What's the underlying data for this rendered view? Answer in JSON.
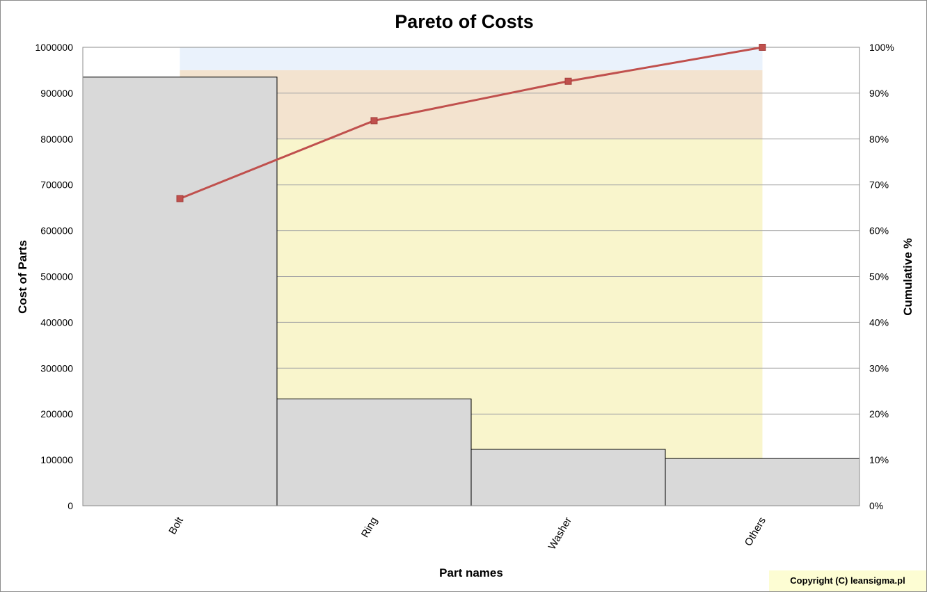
{
  "chart_data": {
    "type": "bar",
    "title": "Pareto of Costs",
    "xlabel": "Part names",
    "ylabel": "Cost of Parts",
    "y2label": "Cumulative %",
    "categories": [
      "Bolt",
      "Ring",
      "Washer",
      "Others"
    ],
    "series": [
      {
        "type": "bar",
        "values": [
          935000,
          233000,
          123000,
          103000
        ]
      },
      {
        "type": "line",
        "values": [
          67,
          84,
          92.6,
          100
        ]
      }
    ],
    "ylim": [
      0,
      1000000
    ],
    "y2lim": [
      0,
      100
    ],
    "yticks": [
      "0",
      "100000",
      "200000",
      "300000",
      "400000",
      "500000",
      "600000",
      "700000",
      "800000",
      "900000",
      "1000000"
    ],
    "y2ticks": [
      "0%",
      "10%",
      "20%",
      "30%",
      "40%",
      "50%",
      "60%",
      "70%",
      "80%",
      "90%",
      "100%"
    ],
    "bands": [
      {
        "from_pct": 95,
        "to_pct": 100,
        "color": "#eaf2fc"
      },
      {
        "from_pct": 80,
        "to_pct": 95,
        "color": "#f3e3cf"
      },
      {
        "from_pct": 10,
        "to_pct": 80,
        "color": "#f9f5cc"
      }
    ],
    "colors": {
      "bar": "#d9d9d9",
      "bar_border": "#000000",
      "line": "#c0504d",
      "grid": "#a6a6a6"
    },
    "grid": true,
    "legend": "none"
  },
  "footer": {
    "copyright": "Copyright (C) leansigma.pl"
  }
}
